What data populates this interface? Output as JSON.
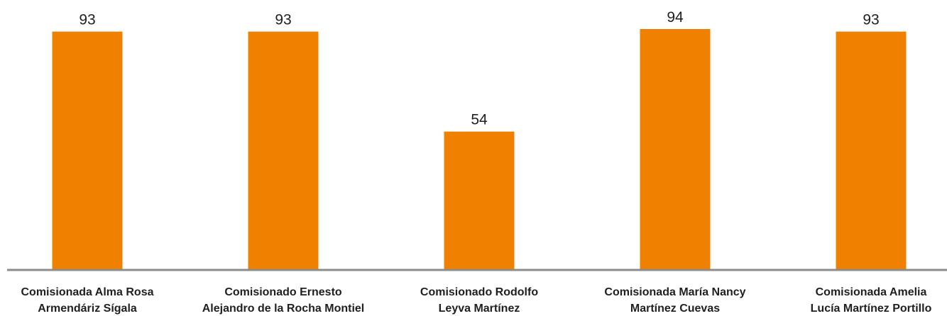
{
  "chart_data": {
    "type": "bar",
    "categories": [
      [
        "Comisionada Alma Rosa",
        "Armendáriz Sígala"
      ],
      [
        "Comisionado Ernesto",
        "Alejandro de la Rocha Montiel"
      ],
      [
        "Comisionado Rodolfo",
        "Leyva Martínez"
      ],
      [
        "Comisionada María Nancy",
        "Martínez Cuevas"
      ],
      [
        "Comisionada Amelia",
        "Lucía Martínez Portillo"
      ]
    ],
    "values": [
      93,
      93,
      54,
      94,
      93
    ],
    "title": "",
    "xlabel": "",
    "ylabel": "",
    "ylim": [
      0,
      94
    ],
    "grid": false,
    "legend": "none",
    "colors": {
      "bar": "#F08000",
      "axis": "#8c8c8c",
      "text": "#1f1f1f"
    }
  }
}
